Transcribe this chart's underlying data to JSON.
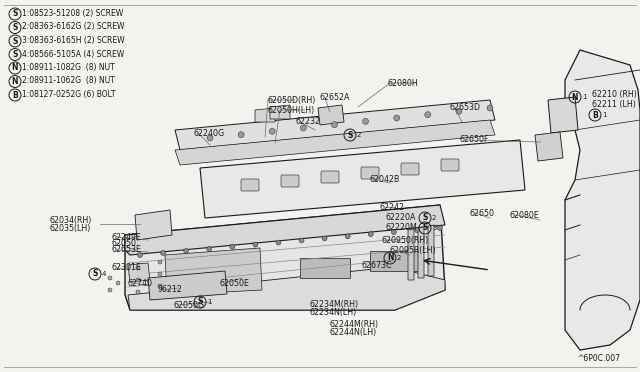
{
  "bg_color": "#f2f2ee",
  "dark": "#1a1a1a",
  "gray": "#666666",
  "lgray": "#aaaaaa",
  "legend_items": [
    {
      "sym": "S",
      "num": "1",
      "text": "08523-51208 (2) SCREW"
    },
    {
      "sym": "S",
      "num": "2",
      "text": "08363-6162G (2) SCREW"
    },
    {
      "sym": "S",
      "num": "3",
      "text": "08363-6165H (2) SCREW"
    },
    {
      "sym": "S",
      "num": "4",
      "text": "08566-5105A (4) SCREW"
    },
    {
      "sym": "N",
      "num": "1",
      "text": "08911-1082G  (8) NUT"
    },
    {
      "sym": "N",
      "num": "2",
      "text": "08911-1062G  (8) NUT"
    },
    {
      "sym": "B",
      "num": "1",
      "text": "08127-0252G (6) BOLT"
    }
  ],
  "footer": "^6P0C.007"
}
